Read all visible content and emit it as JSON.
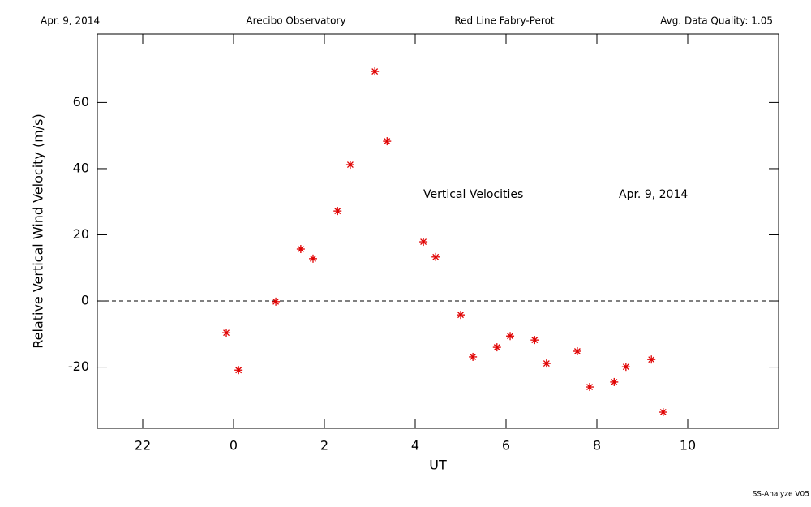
{
  "chart_data": {
    "type": "scatter",
    "header": [
      "Apr. 9, 2014",
      "Arecibo Observatory",
      "Red Line Fabry-Perot",
      "Avg. Data Quality: 1.05"
    ],
    "annotations": [
      "Vertical Velocities",
      "Apr. 9, 2014"
    ],
    "footer": "SS-Analyze V05",
    "x_label": "UT",
    "y_label": "Relative Vertical Wind Velocity (m/s)",
    "xlim": [
      -3,
      12
    ],
    "xticks": [
      {
        "value": -2,
        "label": "22"
      },
      0,
      2,
      4,
      6,
      8,
      10
    ],
    "ylim": [
      -38.5,
      80.7
    ],
    "yticks": [
      -20,
      0,
      20,
      40,
      60
    ],
    "reference_line": 0,
    "color": "#e00000",
    "x": [
      -0.16,
      0.11,
      0.93,
      1.48,
      1.75,
      2.29,
      2.57,
      3.11,
      3.38,
      4.18,
      4.45,
      5.0,
      5.27,
      5.8,
      6.09,
      6.63,
      6.89,
      7.57,
      7.84,
      8.38,
      8.64,
      9.2,
      9.46
    ],
    "values": [
      -9.6,
      -20.9,
      -0.2,
      15.7,
      12.8,
      27.2,
      41.2,
      69.4,
      48.3,
      17.9,
      13.3,
      -4.2,
      -16.9,
      -14.0,
      -10.6,
      -11.8,
      -18.9,
      -15.2,
      -26.0,
      -24.5,
      -19.9,
      -17.7,
      -33.6
    ]
  }
}
